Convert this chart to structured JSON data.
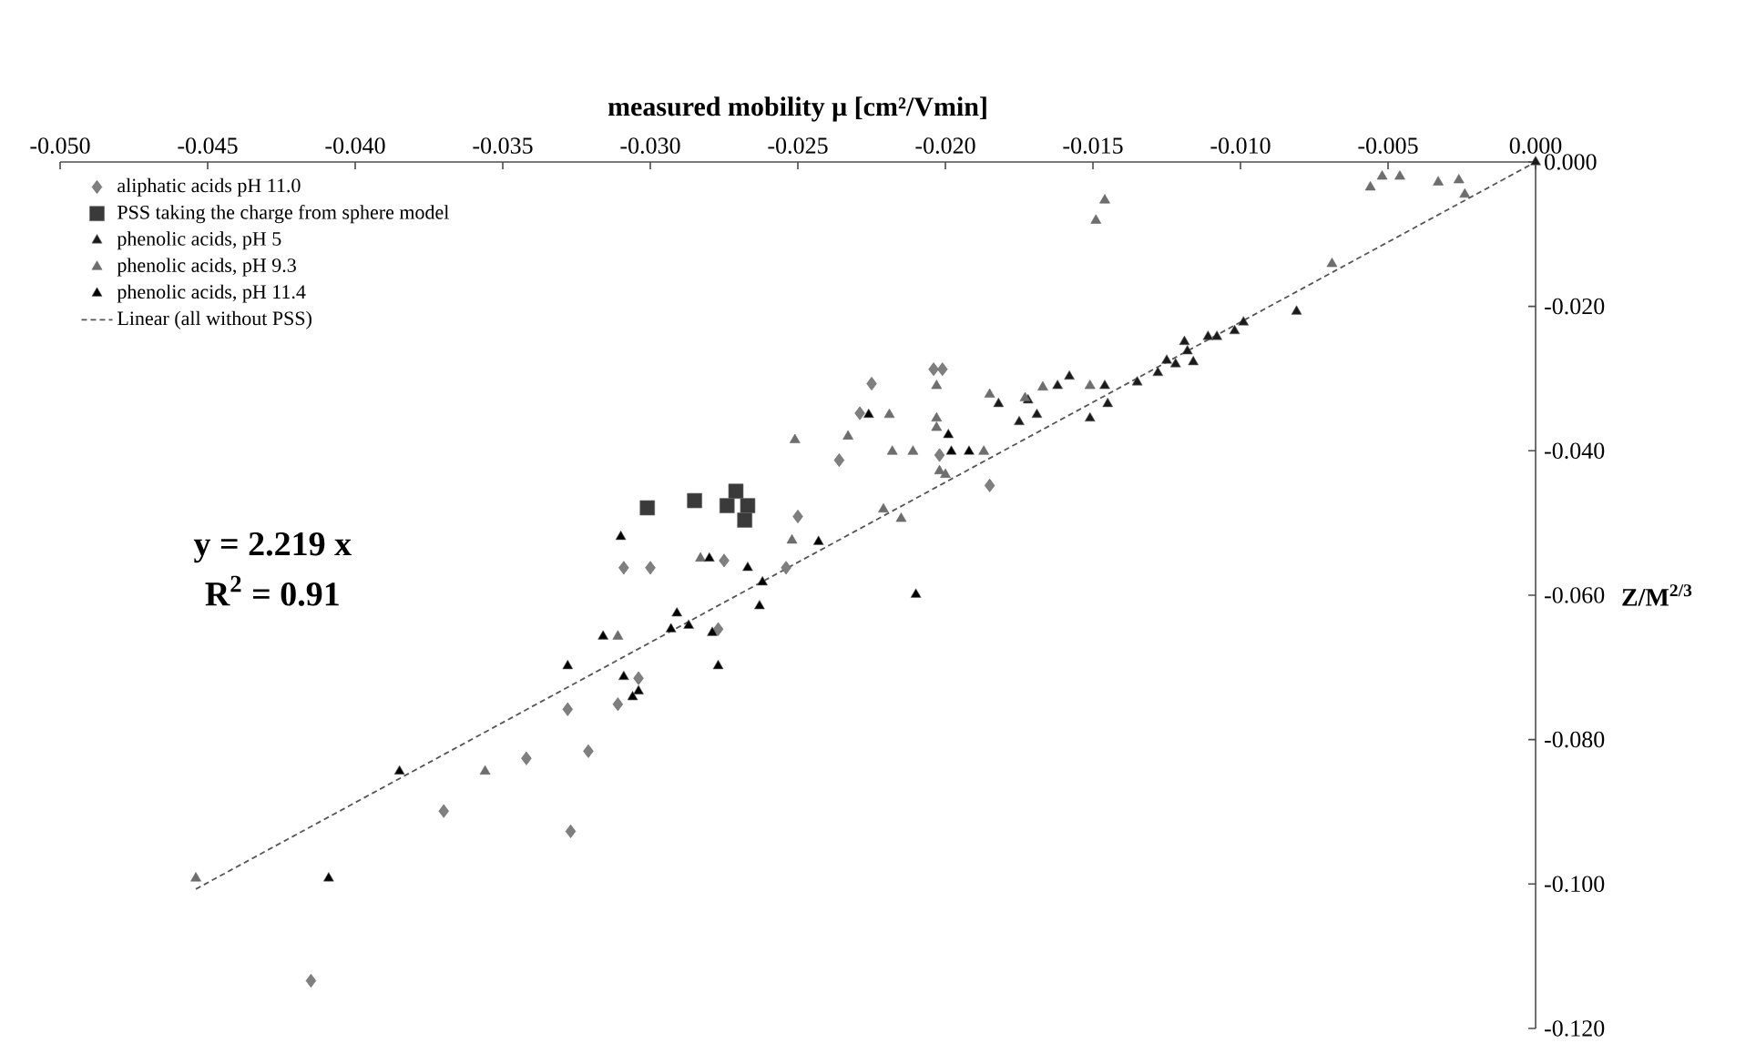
{
  "chart_data": {
    "type": "scatter",
    "xlabel": "measured mobility μ [cm²/Vmin]",
    "ylabel": "Z/M$^{2/3}$",
    "xlim": [
      -0.05,
      0
    ],
    "ylim": [
      -0.12,
      0
    ],
    "xticks": [
      {
        "value": -0.05,
        "label": "-0.050"
      },
      {
        "value": -0.045,
        "label": "-0.045"
      },
      {
        "value": -0.04,
        "label": "-0.040"
      },
      {
        "value": -0.035,
        "label": "-0.035"
      },
      {
        "value": -0.03,
        "label": "-0.030"
      },
      {
        "value": -0.025,
        "label": "-0.025"
      },
      {
        "value": -0.02,
        "label": "-0.020"
      },
      {
        "value": -0.015,
        "label": "-0.015"
      },
      {
        "value": -0.01,
        "label": "-0.010"
      },
      {
        "value": -0.005,
        "label": "-0.005"
      },
      {
        "value": 0,
        "label": "0.000"
      }
    ],
    "yticks": [
      {
        "value": 0,
        "label": "0.000"
      },
      {
        "value": -0.02,
        "label": "-0.020"
      },
      {
        "value": -0.04,
        "label": "-0.040"
      },
      {
        "value": -0.06,
        "label": "-0.060"
      },
      {
        "value": -0.08,
        "label": "-0.080"
      },
      {
        "value": -0.1,
        "label": "-0.100"
      },
      {
        "value": -0.12,
        "label": "-0.120"
      }
    ],
    "legend": "top left",
    "annotations": [
      "y = 2.219 x",
      "R$^{2}$ = 0.91"
    ],
    "series": [
      {
        "name": "aliphatic acids pH 11.0",
        "color": "#7f7f7f",
        "marker": "diamond",
        "x": [
          -0.0415,
          -0.037,
          -0.0342,
          -0.0328,
          -0.0321,
          -0.0327,
          -0.0311,
          -0.0304,
          -0.0309,
          -0.03,
          -0.0277,
          -0.0275,
          -0.0254,
          -0.025,
          -0.0236,
          -0.0229,
          -0.0225,
          -0.0204,
          -0.0201,
          -0.0202,
          -0.0185
        ],
        "values": [
          -0.1134,
          -0.0899,
          -0.0826,
          -0.0758,
          -0.0816,
          -0.0927,
          -0.0751,
          -0.0715,
          -0.0562,
          -0.0562,
          -0.0647,
          -0.0552,
          -0.0562,
          -0.0491,
          -0.0413,
          -0.0348,
          -0.0307,
          -0.0287,
          -0.0287,
          -0.0406,
          -0.0448
        ]
      },
      {
        "name": "PSS taking the charge from sphere model",
        "color": "#3a3a3a",
        "marker": "square",
        "x": [
          -0.0301,
          -0.0285,
          -0.0274,
          -0.0271,
          -0.0267,
          -0.0268
        ],
        "values": [
          -0.0479,
          -0.0469,
          -0.0476,
          -0.0456,
          -0.0476,
          -0.0496
        ]
      },
      {
        "name": "phenolic acids, pH 5",
        "color": "#1a1a1a",
        "marker": "triangle",
        "x": [
          -0.0182,
          -0.0175,
          -0.0172,
          -0.0169,
          -0.0162,
          -0.0158,
          -0.0146,
          -0.0151,
          -0.0145,
          -0.0135,
          -0.0128,
          -0.0125,
          -0.0122,
          -0.0119,
          -0.0118,
          -0.0116,
          -0.0111,
          -0.0108,
          -0.0102,
          -0.0099,
          -0.0081,
          0
        ],
        "values": [
          -0.0335,
          -0.036,
          -0.033,
          -0.035,
          -0.031,
          -0.0297,
          -0.031,
          -0.0355,
          -0.0335,
          -0.0305,
          -0.0292,
          -0.0275,
          -0.028,
          -0.0249,
          -0.0262,
          -0.0277,
          -0.0242,
          -0.0242,
          -0.0234,
          -0.0222,
          -0.0207,
          0
        ]
      },
      {
        "name": "phenolic acids, pH 9.3",
        "color": "#6e6e6e",
        "marker": "triangle",
        "x": [
          -0.0454,
          -0.0356,
          -0.0311,
          -0.0283,
          -0.0252,
          -0.0251,
          -0.0233,
          -0.0219,
          -0.0203,
          -0.0203,
          -0.0203,
          -0.0218,
          -0.0211,
          -0.0187,
          -0.0202,
          -0.02,
          -0.0221,
          -0.0215,
          -0.0185,
          -0.0173,
          -0.0167,
          -0.0151,
          -0.0069,
          -0.0149,
          -0.0146,
          -0.0056,
          -0.0052,
          -0.0046,
          -0.0033,
          -0.0026,
          -0.0024
        ],
        "values": [
          -0.0992,
          -0.0844,
          -0.0657,
          -0.0549,
          -0.0524,
          -0.0385,
          -0.038,
          -0.035,
          -0.031,
          -0.0355,
          -0.0368,
          -0.0401,
          -0.0401,
          -0.0401,
          -0.0428,
          -0.0433,
          -0.0481,
          -0.0494,
          -0.0322,
          -0.0327,
          -0.0312,
          -0.031,
          -0.0141,
          -0.0081,
          -0.0053,
          -0.0035,
          -0.002,
          -0.002,
          -0.0028,
          -0.0025,
          -0.0045
        ]
      },
      {
        "name": "phenolic acids, pH 11.4",
        "color": "#000000",
        "marker": "triangle",
        "x": [
          -0.0409,
          -0.0385,
          -0.0328,
          -0.0316,
          -0.0309,
          -0.0304,
          -0.0306,
          -0.031,
          -0.028,
          -0.0267,
          -0.0262,
          -0.0263,
          -0.0243,
          -0.0291,
          -0.0287,
          -0.0293,
          -0.0279,
          -0.0277,
          -0.0226,
          -0.0199,
          -0.0198,
          -0.0192,
          -0.021
        ],
        "values": [
          -0.0992,
          -0.0844,
          -0.0698,
          -0.0657,
          -0.0713,
          -0.0733,
          -0.0741,
          -0.0519,
          -0.0549,
          -0.0562,
          -0.0582,
          -0.0615,
          -0.0526,
          -0.0625,
          -0.0642,
          -0.0647,
          -0.0652,
          -0.0698,
          -0.035,
          -0.0378,
          -0.0401,
          -0.0401,
          -0.0599
        ]
      },
      {
        "name": "Linear (all without PSS)",
        "type": "line",
        "color": "#555555",
        "marker": "none",
        "line_style": "dashed",
        "x": [
          -0.0454,
          0
        ],
        "values": [
          -0.1007,
          0
        ]
      }
    ]
  }
}
